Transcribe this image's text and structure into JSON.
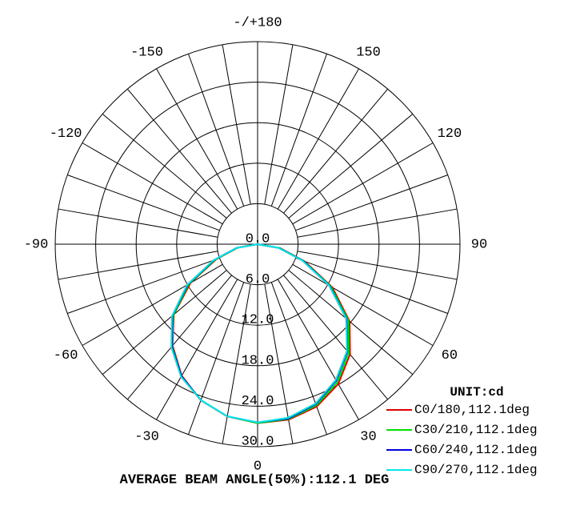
{
  "chart_data": {
    "type": "polar",
    "angle_ticks": [
      0,
      30,
      60,
      90,
      120,
      150,
      {
        "value": 180,
        "label": "-/+180"
      },
      -150,
      -120,
      -90,
      -60,
      -30
    ],
    "rlim": [
      0,
      30
    ],
    "rticks": [
      {
        "value": 0,
        "label": "0.0"
      },
      {
        "value": 6,
        "label": "6.0"
      },
      {
        "value": 12,
        "label": "12.0"
      },
      {
        "value": 18,
        "label": "18.0"
      },
      {
        "value": 24,
        "label": "24.0"
      },
      {
        "value": 30,
        "label": "30.0"
      }
    ],
    "unit_label": "UNIT:cd",
    "footer": "AVERAGE BEAM ANGLE(50%):112.1 DEG",
    "x": [
      -90,
      -80,
      -70,
      -60,
      -50,
      -40,
      -30,
      -20,
      -10,
      0,
      10,
      20,
      30,
      40,
      50,
      60,
      70,
      80,
      90
    ],
    "series": [
      {
        "name": "C0/180,112.1deg",
        "color": "#e00000",
        "values": [
          0,
          3,
          6.5,
          11.5,
          16.2,
          19.6,
          22.5,
          24.6,
          25.9,
          26.5,
          26.4,
          25.6,
          23.9,
          21.3,
          17.8,
          12.8,
          7.4,
          3.4,
          0
        ]
      },
      {
        "name": "C30/210,112.1deg",
        "color": "#00e000",
        "values": [
          0,
          3.1,
          6.7,
          11.8,
          16.3,
          19.7,
          22.6,
          24.6,
          25.9,
          26.5,
          26.3,
          25.4,
          23.6,
          21,
          17.5,
          12.5,
          7.2,
          3.3,
          0
        ]
      },
      {
        "name": "C60/240,112.1deg",
        "color": "#0000e0",
        "values": [
          0,
          3.2,
          6.9,
          12,
          16.5,
          19.8,
          22.6,
          24.6,
          25.9,
          26.4,
          26.2,
          25.2,
          23.3,
          20.7,
          17.2,
          12.3,
          7.1,
          3.2,
          0
        ]
      },
      {
        "name": "C90/270,112.1deg",
        "color": "#00e8e8",
        "values": [
          0,
          3.2,
          7,
          12.1,
          16.6,
          19.9,
          22.7,
          24.6,
          25.9,
          26.4,
          26.1,
          25.1,
          23.2,
          20.6,
          17.1,
          12.2,
          7,
          3.1,
          0
        ]
      }
    ]
  }
}
